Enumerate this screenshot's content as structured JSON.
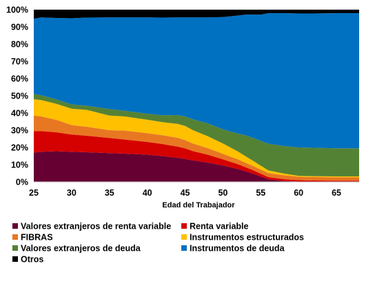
{
  "chart_data": {
    "type": "area",
    "stacked": true,
    "normalized": true,
    "title": "",
    "xlabel": "Edad del Trabajador",
    "ylabel": "",
    "xlim": [
      25,
      68
    ],
    "ylim": [
      0,
      100
    ],
    "x_ticks": [
      25,
      30,
      35,
      40,
      45,
      50,
      55,
      60,
      65
    ],
    "y_ticks": [
      0,
      10,
      20,
      30,
      40,
      50,
      60,
      70,
      80,
      90,
      100
    ],
    "y_tick_suffix": "%",
    "grid": false,
    "legend_position": "bottom",
    "x": [
      25,
      26,
      28,
      30,
      32,
      35,
      37,
      40,
      42,
      44,
      45,
      46,
      48,
      50,
      52,
      53,
      54,
      55,
      56,
      58,
      60,
      62,
      65,
      68
    ],
    "series": [
      {
        "name": "Valores extranjeros de renta variable",
        "color": "#660033",
        "values": [
          17,
          17.5,
          17.8,
          17.5,
          17.2,
          16.7,
          16.4,
          15.8,
          15,
          14,
          13.3,
          12.5,
          11.2,
          9.5,
          7.5,
          6.2,
          4.8,
          3.2,
          1.5,
          0.5,
          0.2,
          0.2,
          0.2,
          0.2
        ]
      },
      {
        "name": "Renta variable",
        "color": "#d50000",
        "values": [
          12.5,
          12,
          11,
          10,
          9.6,
          8.8,
          8.2,
          7.4,
          7,
          6.5,
          6.2,
          5.4,
          4.6,
          3.6,
          2.8,
          2.4,
          2,
          1.6,
          1.3,
          1.1,
          0.8,
          0.6,
          0.5,
          0.5
        ]
      },
      {
        "name": "FIBRAS",
        "color": "#e87722",
        "values": [
          9,
          8.5,
          7.2,
          5.5,
          5.2,
          4.5,
          5.2,
          5.1,
          5.1,
          5.1,
          4.8,
          4.4,
          3.8,
          3.2,
          2.8,
          2.6,
          2.5,
          2.4,
          2.3,
          2.3,
          2,
          2,
          2,
          2
        ]
      },
      {
        "name": "Instrumentos estructurados",
        "color": "#ffc000",
        "values": [
          9.5,
          9.5,
          9.3,
          9.5,
          9.8,
          8.5,
          8.2,
          7.8,
          7.6,
          8.1,
          8.2,
          7.8,
          6.9,
          6,
          4.6,
          3.8,
          3,
          2.3,
          1.6,
          1,
          0.5,
          0.5,
          0.5,
          0.5
        ]
      },
      {
        "name": "Valores extranjeros de deuda",
        "color": "#548235",
        "values": [
          3,
          2.8,
          2.6,
          2.5,
          2.4,
          3.8,
          3.3,
          3.5,
          4,
          5.1,
          5.5,
          6.3,
          7.5,
          8.2,
          10.5,
          12.3,
          13.5,
          14.5,
          15.5,
          16,
          16.5,
          16.5,
          16.3,
          16.3
        ]
      },
      {
        "name": "Instrumentos de deuda",
        "color": "#0070c0",
        "values": [
          43.7,
          45.2,
          47.3,
          50,
          51.2,
          53.2,
          54.2,
          55.9,
          56.7,
          56.7,
          57.5,
          59.1,
          61.5,
          65.2,
          68.9,
          70.8,
          72.3,
          74,
          75.8,
          77.1,
          77.8,
          78,
          78.5,
          78.5
        ]
      },
      {
        "name": "Otros",
        "color": "#000000",
        "values": [
          5.3,
          4.5,
          4.8,
          5,
          4.6,
          4.5,
          4.5,
          4.5,
          4.6,
          4.5,
          4.5,
          4.5,
          4.5,
          4.3,
          3.4,
          2.9,
          2.9,
          2.9,
          2,
          2,
          2.2,
          2.2,
          2,
          2
        ]
      }
    ]
  }
}
